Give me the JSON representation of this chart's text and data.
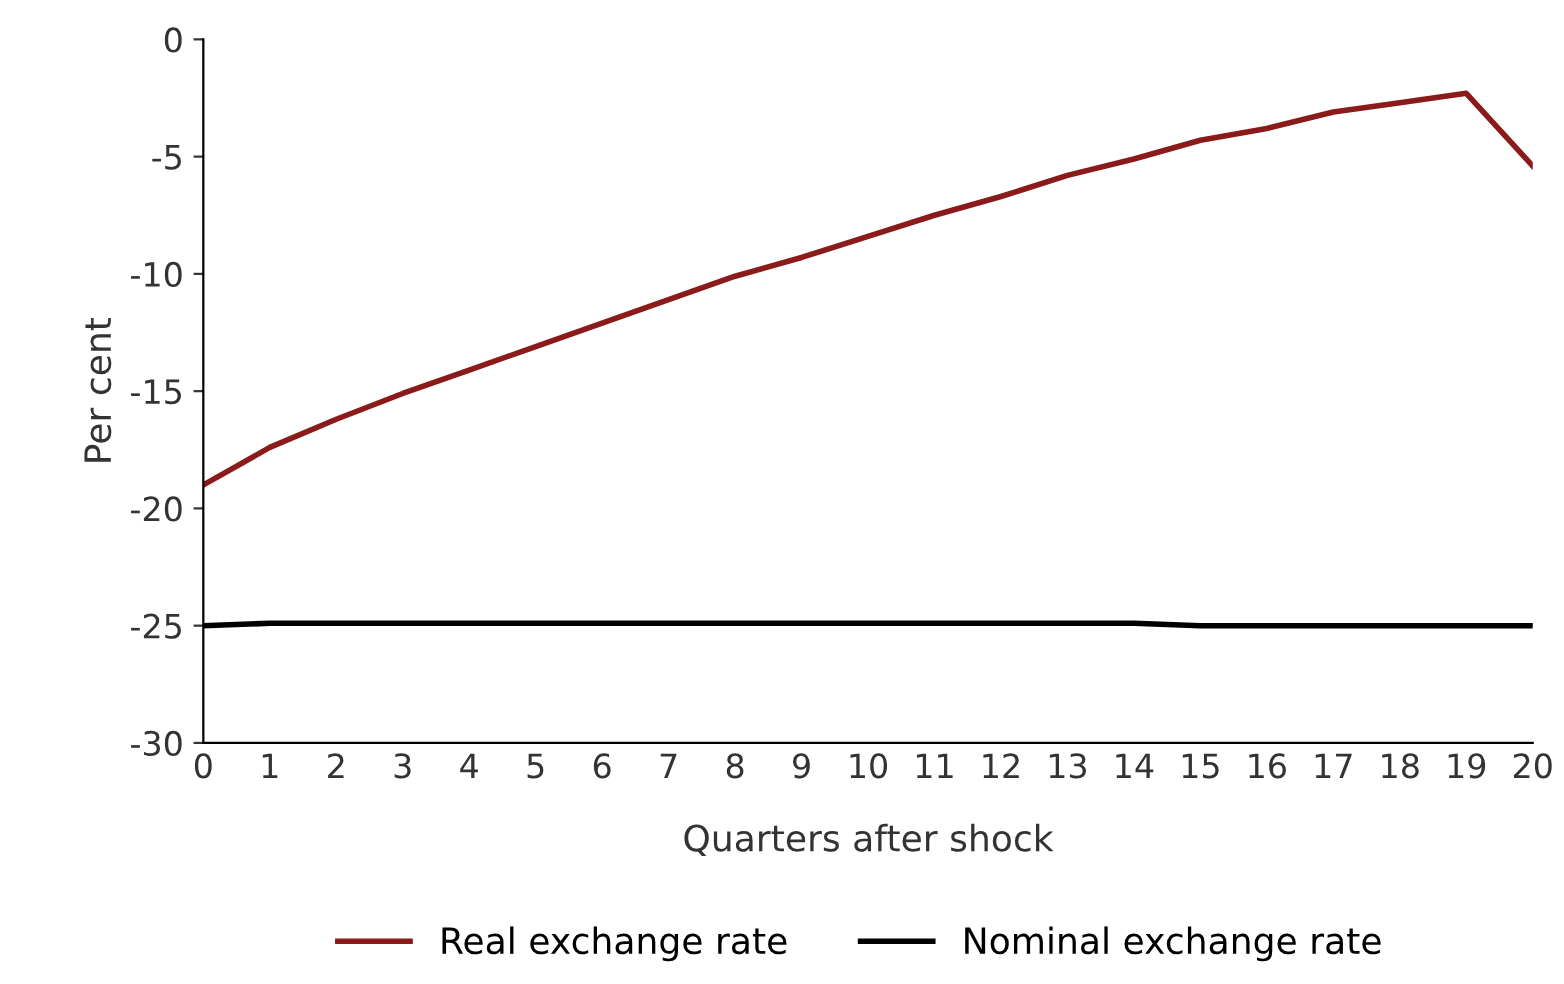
{
  "chart_data": {
    "type": "line",
    "xlabel": "Quarters after shock",
    "ylabel": "Per cent",
    "x": [
      0,
      1,
      2,
      3,
      4,
      5,
      6,
      7,
      8,
      9,
      10,
      11,
      12,
      13,
      14,
      15,
      16,
      17,
      18,
      19,
      20
    ],
    "series": [
      {
        "name": "Real exchange rate",
        "color": "#8b1a1a",
        "values": [
          -19,
          -17.4,
          -16.2,
          -15.1,
          -14.1,
          -13.1,
          -12.1,
          -11.1,
          -10.1,
          -9.3,
          -8.4,
          -7.5,
          -6.7,
          -5.8,
          -5.1,
          -4.3,
          -3.8,
          -3.1,
          -2.7,
          -2.3,
          -5.4
        ]
      },
      {
        "name": "Nominal exchange rate",
        "color": "#000000",
        "values": [
          -25,
          -24.9,
          -24.9,
          -24.9,
          -24.9,
          -24.9,
          -24.9,
          -24.9,
          -24.9,
          -24.9,
          -24.9,
          -24.9,
          -24.9,
          -24.9,
          -24.9,
          -25,
          -25,
          -25,
          -25,
          -25,
          -25
        ]
      }
    ],
    "xlim": [
      0,
      20
    ],
    "xticks": [
      0,
      1,
      2,
      3,
      4,
      5,
      6,
      7,
      8,
      9,
      10,
      11,
      12,
      13,
      14,
      15,
      16,
      17,
      18,
      19,
      20
    ],
    "ylim": [
      -30,
      0
    ],
    "yticks": [
      -30,
      -25,
      -20,
      -15,
      -10,
      -5,
      0
    ],
    "grid": false,
    "legend": "bottom"
  }
}
